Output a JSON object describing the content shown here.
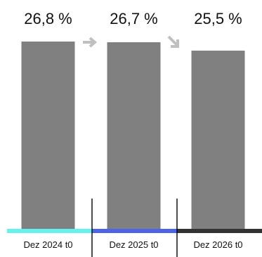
{
  "chart_data": {
    "type": "bar",
    "categories": [
      "Dez 2024 t0",
      "Dez 2025 t0",
      "Dez 2026 t0"
    ],
    "values": [
      26.8,
      26.7,
      25.5
    ],
    "value_labels": [
      "26,8 %",
      "26,7 %",
      "25,5 %"
    ],
    "unit": "%",
    "ylim": [
      0,
      26.8
    ],
    "bar_color": "#808080",
    "category_colors": [
      "#66f0f0",
      "#4f63e8",
      "#333333"
    ],
    "trend_icons": [
      "arrow-right-icon",
      "arrow-down-right-icon"
    ],
    "trend_color": "#c0c0c0"
  }
}
